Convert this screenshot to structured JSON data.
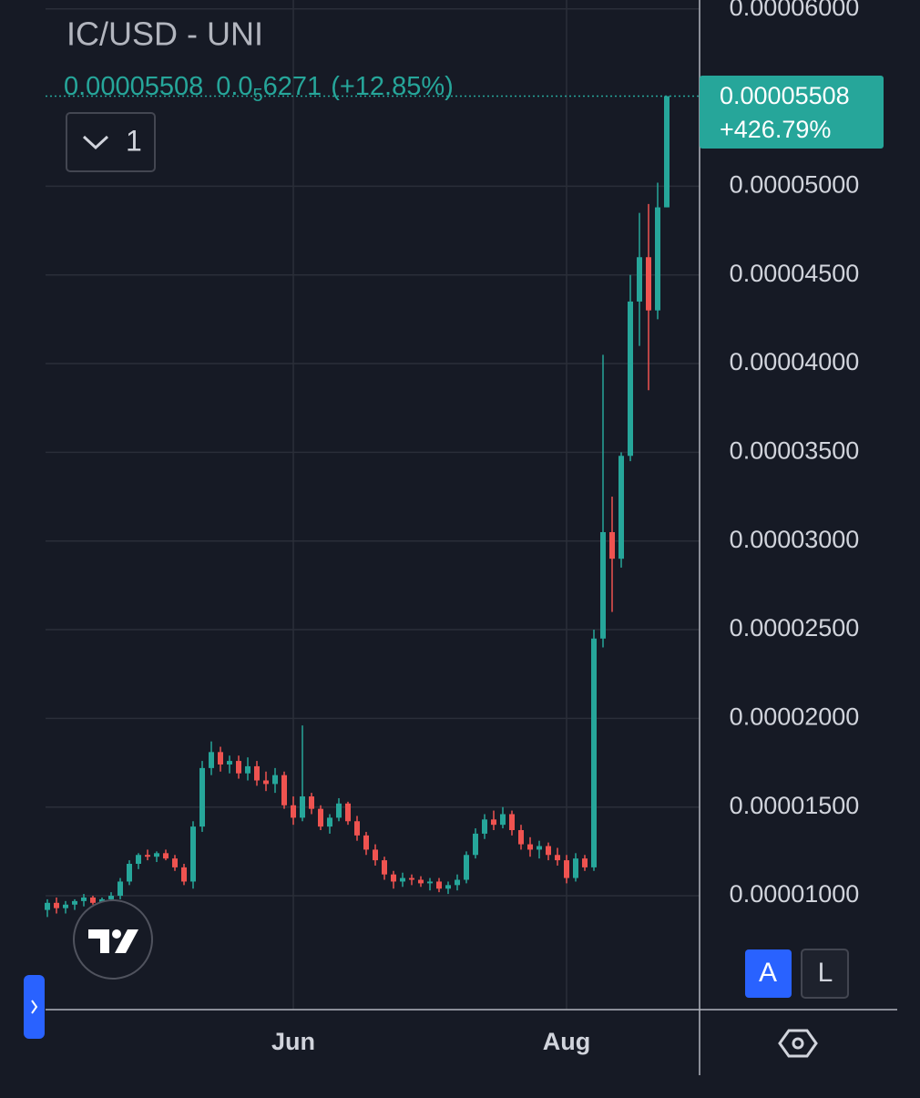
{
  "header": {
    "symbol": "IC/USD - UNI",
    "last_price": "0.00005508",
    "change_lead": "0.0",
    "change_sub": "5",
    "change_rest": "6271",
    "change_pct": "(+12.85%)"
  },
  "controls": {
    "interval": "1",
    "auto": "A",
    "log": "L"
  },
  "price_label": {
    "price": "0.00005508",
    "change": "+426.79%"
  },
  "chart_data": {
    "type": "candlestick",
    "categories": [
      null,
      null,
      null,
      null,
      null,
      null,
      null,
      null,
      null,
      null,
      null,
      null,
      null,
      null,
      null,
      null,
      null,
      null,
      null,
      null,
      null,
      null,
      null,
      null,
      null,
      null,
      null,
      "Jun",
      null,
      null,
      null,
      null,
      null,
      null,
      null,
      null,
      null,
      null,
      null,
      null,
      null,
      null,
      null,
      null,
      null,
      null,
      null,
      null,
      null,
      null,
      null,
      null,
      null,
      null,
      null,
      null,
      null,
      "Aug",
      null,
      null,
      null,
      null,
      null,
      null,
      null,
      null,
      null,
      null,
      null
    ],
    "open": [
      9.2e-06,
      9.6e-06,
      9.3e-06,
      9.5e-06,
      9.7e-06,
      9.9e-06,
      9.6e-06,
      9.8e-06,
      1e-05,
      1.08e-05,
      1.18e-05,
      1.23e-05,
      1.22e-05,
      1.24e-05,
      1.21e-05,
      1.16e-05,
      1.08e-05,
      1.39e-05,
      1.72e-05,
      1.81e-05,
      1.74e-05,
      1.76e-05,
      1.69e-05,
      1.73e-05,
      1.65e-05,
      1.63e-05,
      1.68e-05,
      1.51e-05,
      1.44e-05,
      1.56e-05,
      1.49e-05,
      1.39e-05,
      1.44e-05,
      1.52e-05,
      1.42e-05,
      1.34e-05,
      1.26e-05,
      1.2e-05,
      1.12e-05,
      1.08e-05,
      1.1e-05,
      1.09e-05,
      1.07e-05,
      1.08e-05,
      1.04e-05,
      1.06e-05,
      1.09e-05,
      1.23e-05,
      1.35e-05,
      1.43e-05,
      1.4e-05,
      1.46e-05,
      1.37e-05,
      1.29e-05,
      1.26e-05,
      1.28e-05,
      1.23e-05,
      1.2e-05,
      1.1e-05,
      1.21e-05,
      1.16e-05,
      2.45e-05,
      3.05e-05,
      2.9e-05,
      3.48e-05,
      4.35e-05,
      4.6e-05,
      4.3e-05,
      4.881e-05
    ],
    "high": [
      9.8e-06,
      9.9e-06,
      9.7e-06,
      9.8e-06,
      1.01e-05,
      1e-05,
      9.9e-06,
      1.02e-05,
      1.1e-05,
      1.2e-05,
      1.24e-05,
      1.26e-05,
      1.25e-05,
      1.26e-05,
      1.23e-05,
      1.18e-05,
      1.42e-05,
      1.76e-05,
      1.87e-05,
      1.84e-05,
      1.79e-05,
      1.79e-05,
      1.78e-05,
      1.76e-05,
      1.7e-05,
      1.72e-05,
      1.7e-05,
      1.56e-05,
      1.96e-05,
      1.58e-05,
      1.51e-05,
      1.46e-05,
      1.55e-05,
      1.53e-05,
      1.45e-05,
      1.36e-05,
      1.29e-05,
      1.22e-05,
      1.14e-05,
      1.13e-05,
      1.12e-05,
      1.11e-05,
      1.1e-05,
      1.1e-05,
      1.08e-05,
      1.12e-05,
      1.25e-05,
      1.38e-05,
      1.46e-05,
      1.48e-05,
      1.5e-05,
      1.48e-05,
      1.4e-05,
      1.33e-05,
      1.31e-05,
      1.3e-05,
      1.27e-05,
      1.23e-05,
      1.24e-05,
      1.23e-05,
      2.5e-05,
      4.05e-05,
      3.25e-05,
      3.5e-05,
      4.5e-05,
      4.85e-05,
      4.9e-05,
      5.02e-05,
      5.508e-05
    ],
    "low": [
      8.8e-06,
      9e-06,
      9e-06,
      9.2e-06,
      9.4e-06,
      9.5e-06,
      9.3e-06,
      9.5e-06,
      9.8e-06,
      1.06e-05,
      1.15e-05,
      1.2e-05,
      1.19e-05,
      1.2e-05,
      1.14e-05,
      1.06e-05,
      1.04e-05,
      1.36e-05,
      1.68e-05,
      1.7e-05,
      1.69e-05,
      1.66e-05,
      1.65e-05,
      1.62e-05,
      1.59e-05,
      1.58e-05,
      1.49e-05,
      1.4e-05,
      1.42e-05,
      1.46e-05,
      1.37e-05,
      1.35e-05,
      1.42e-05,
      1.4e-05,
      1.31e-05,
      1.23e-05,
      1.17e-05,
      1.09e-05,
      1.04e-05,
      1.05e-05,
      1.06e-05,
      1.05e-05,
      1.03e-05,
      1.02e-05,
      1.01e-05,
      1.03e-05,
      1.07e-05,
      1.21e-05,
      1.32e-05,
      1.37e-05,
      1.38e-05,
      1.34e-05,
      1.26e-05,
      1.22e-05,
      1.21e-05,
      1.2e-05,
      1.17e-05,
      1.07e-05,
      1.08e-05,
      1.14e-05,
      1.14e-05,
      2.4e-05,
      2.6e-05,
      2.85e-05,
      3.45e-05,
      4.1e-05,
      3.85e-05,
      4.25e-05,
      4.881e-05
    ],
    "close": [
      9.6e-06,
      9.3e-06,
      9.5e-06,
      9.7e-06,
      9.9e-06,
      9.6e-06,
      9.8e-06,
      1e-05,
      1.08e-05,
      1.18e-05,
      1.23e-05,
      1.22e-05,
      1.24e-05,
      1.21e-05,
      1.16e-05,
      1.08e-05,
      1.39e-05,
      1.72e-05,
      1.81e-05,
      1.74e-05,
      1.76e-05,
      1.69e-05,
      1.73e-05,
      1.65e-05,
      1.63e-05,
      1.68e-05,
      1.51e-05,
      1.44e-05,
      1.56e-05,
      1.49e-05,
      1.39e-05,
      1.44e-05,
      1.52e-05,
      1.42e-05,
      1.34e-05,
      1.26e-05,
      1.2e-05,
      1.12e-05,
      1.08e-05,
      1.1e-05,
      1.09e-05,
      1.07e-05,
      1.08e-05,
      1.04e-05,
      1.06e-05,
      1.09e-05,
      1.23e-05,
      1.35e-05,
      1.43e-05,
      1.4e-05,
      1.46e-05,
      1.37e-05,
      1.29e-05,
      1.26e-05,
      1.28e-05,
      1.23e-05,
      1.2e-05,
      1.1e-05,
      1.21e-05,
      1.16e-05,
      2.45e-05,
      3.05e-05,
      2.9e-05,
      3.48e-05,
      4.35e-05,
      4.6e-05,
      4.3e-05,
      4.881e-05,
      5.508e-05
    ],
    "up_color": "#26a69a",
    "down_color": "#ef5350",
    "ylim": [
      3.58e-06,
      6.05e-05
    ],
    "yticks": [
      {
        "value": 1e-05,
        "label": "0.00001000"
      },
      {
        "value": 1.5e-05,
        "label": "0.00001500"
      },
      {
        "value": 2e-05,
        "label": "0.00002000"
      },
      {
        "value": 2.5e-05,
        "label": "0.00002500"
      },
      {
        "value": 3e-05,
        "label": "0.00003000"
      },
      {
        "value": 3.5e-05,
        "label": "0.00003500"
      },
      {
        "value": 4e-05,
        "label": "0.00004000"
      },
      {
        "value": 4.5e-05,
        "label": "0.00004500"
      },
      {
        "value": 5e-05,
        "label": "0.00005000"
      },
      {
        "value": 6e-05,
        "label": "0.00006000"
      }
    ],
    "grid": true
  }
}
